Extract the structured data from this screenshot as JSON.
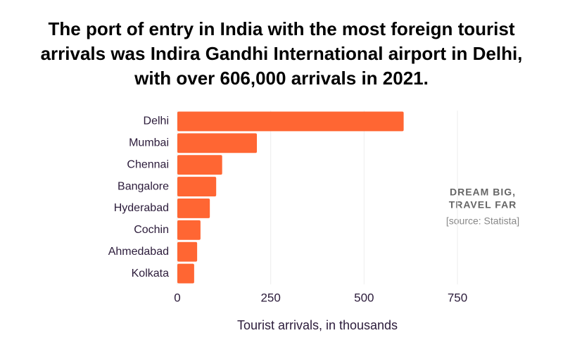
{
  "chart_data": {
    "type": "barh",
    "title": "The port of entry in India with the most foreign tourist arrivals was Indira Gandhi International airport in Delhi, with over 606,000 arrivals in 2021.",
    "categories": [
      "Delhi",
      "Mumbai",
      "Chennai",
      "Bangalore",
      "Hyderabad",
      "Cochin",
      "Ahmedabad",
      "Kolkata"
    ],
    "values": [
      606,
      213,
      120,
      104,
      87,
      62,
      53,
      45
    ],
    "color": "#ff6633",
    "xlim": [
      0,
      750
    ],
    "xticks": [
      0,
      250,
      500,
      750
    ],
    "grid": true,
    "xlabel": "Tourist arrivals, in thousands",
    "annotations": [
      "DREAM BIG,",
      "TRAVEL FAR",
      "[source: Statista]"
    ]
  }
}
